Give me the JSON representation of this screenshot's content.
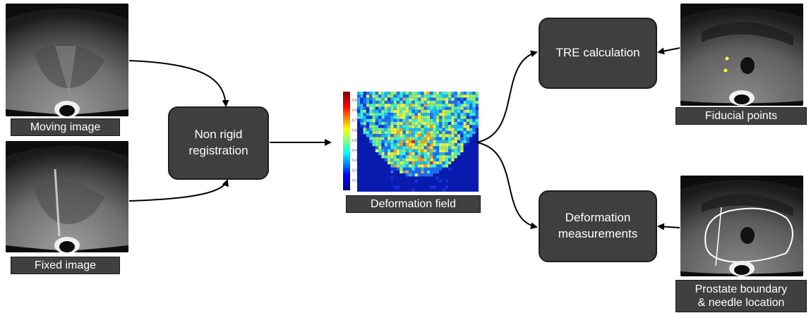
{
  "captions": {
    "moving": "Moving image",
    "fixed": "Fixed image",
    "deformation_field": "Deformation field",
    "fiducial": "Fiducial points",
    "prostate": "Prostate boundary\n& needle location"
  },
  "processes": {
    "registration": "Non rigid\nregistration",
    "tre": "TRE calculation",
    "deformation": "Deformation\nmeasurements"
  },
  "colorbar": {
    "ticks": [
      "0.9",
      "0.8",
      "0.7",
      "0.6",
      "0.5",
      "0.4",
      "0.3",
      "0.2",
      "0.1"
    ]
  },
  "colors": {
    "box_fill": "#3f3f3f",
    "caption_fill": "#404040",
    "arrow": "#000000"
  }
}
